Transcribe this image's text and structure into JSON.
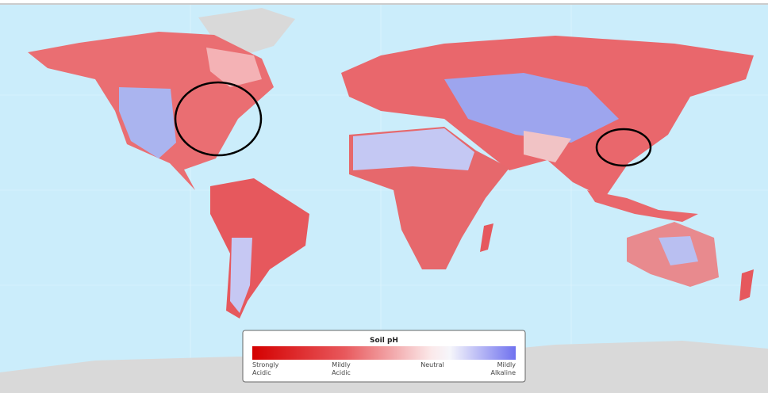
{
  "legend": {
    "title": "Soil pH",
    "labels": [
      [
        "Strongly",
        "Acidic"
      ],
      [
        "Mildly",
        "Acidic"
      ],
      [
        "Neutral"
      ],
      [
        "Mildly",
        "Alkaline"
      ]
    ]
  }
}
